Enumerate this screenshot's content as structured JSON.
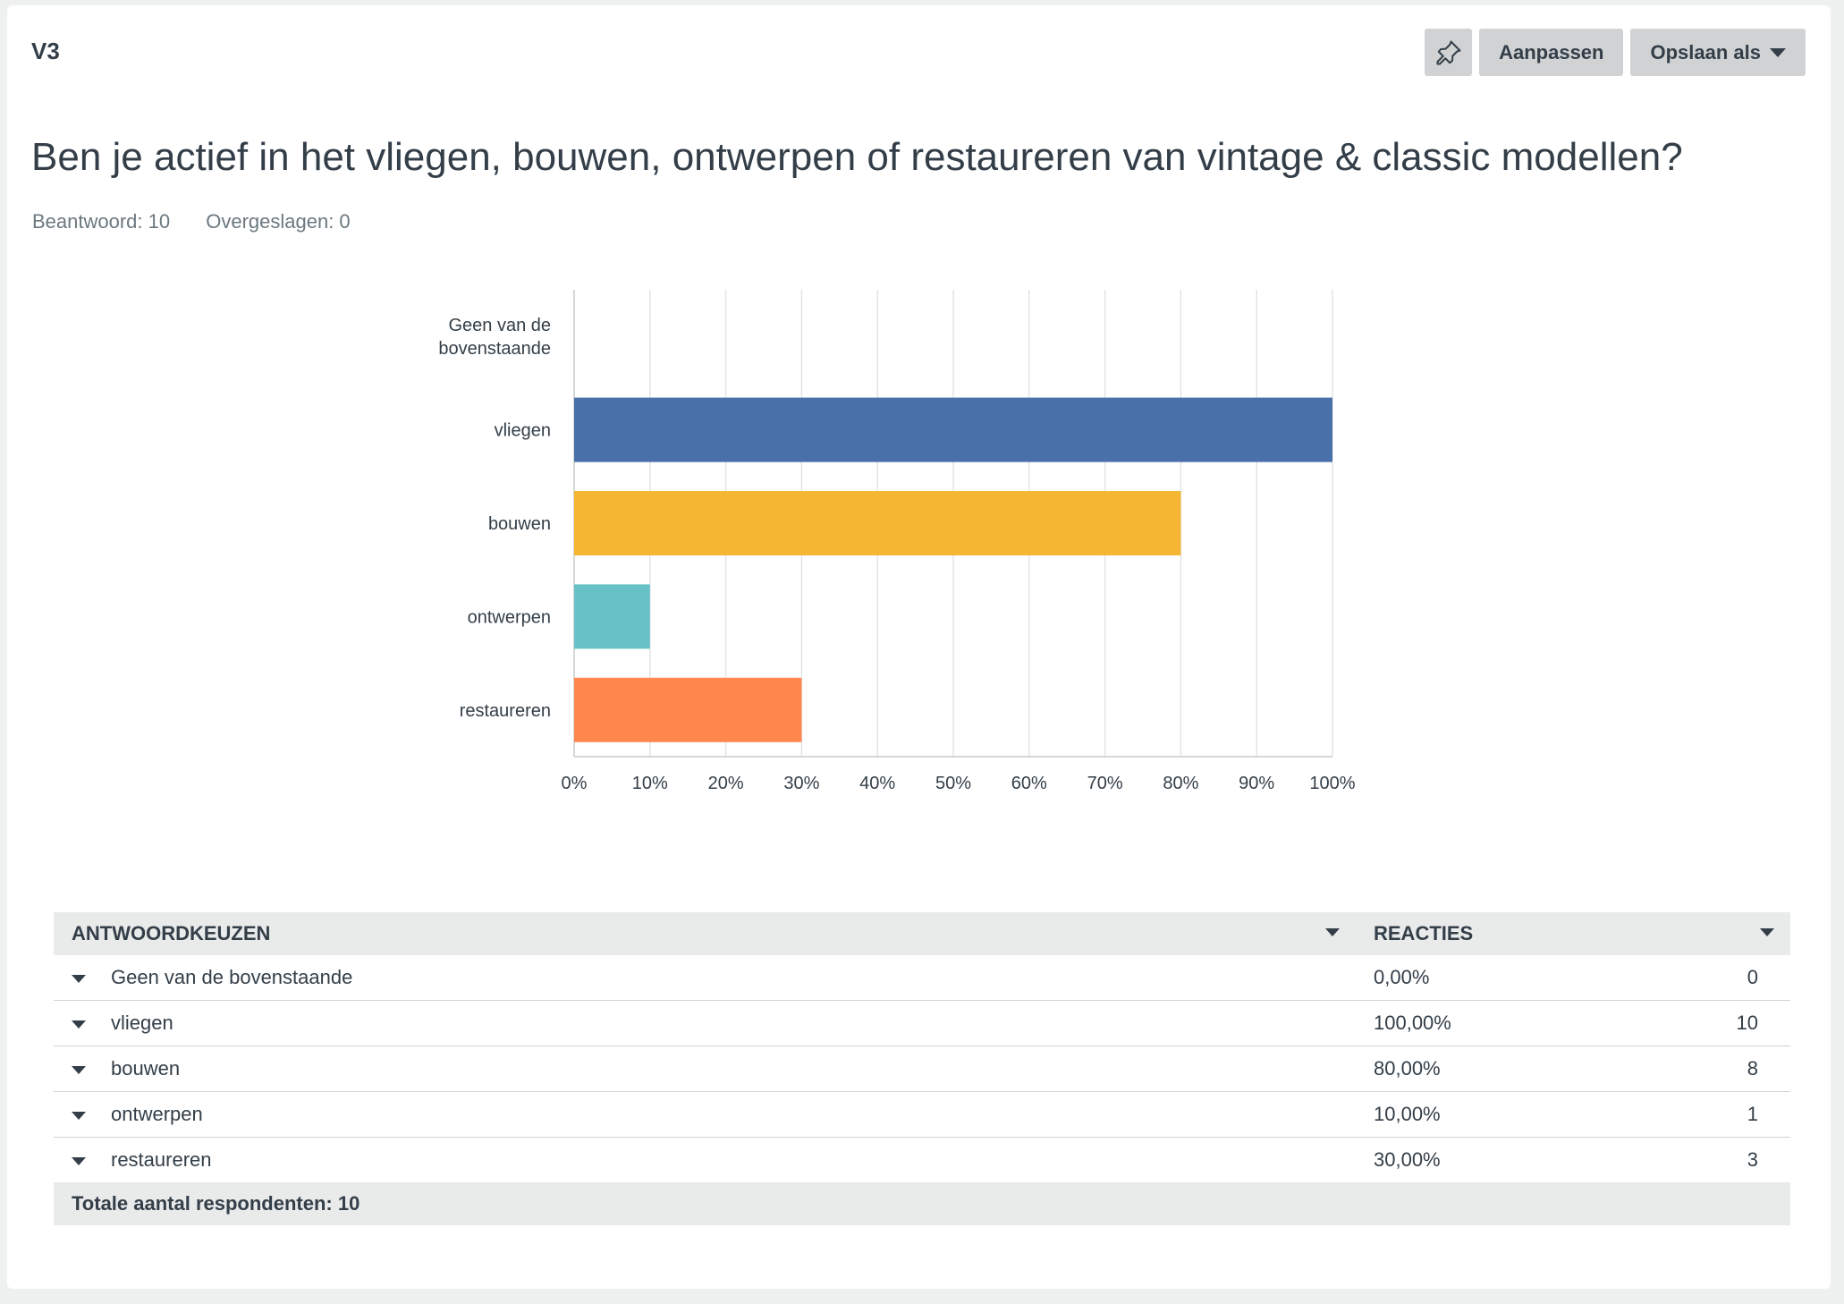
{
  "question": {
    "number": "V3",
    "title": "Ben je actief in het vliegen, bouwen, ontwerpen of restaureren van vintage & classic modellen?",
    "answered": "Beantwoord: 10",
    "skipped": "Overgeslagen: 0"
  },
  "toolbar": {
    "pin_icon": "pin-icon",
    "adjust_label": "Aanpassen",
    "save_label": "Opslaan als"
  },
  "colors": {
    "vliegen": "#4a70aa",
    "bouwen": "#f5b733",
    "ontwerpen": "#67c1c6",
    "restaureren": "#ff874d",
    "grid": "#e3e4e5"
  },
  "chart_data": {
    "type": "bar",
    "orientation": "horizontal",
    "categories": [
      "Geen van de bovenstaande",
      "vliegen",
      "bouwen",
      "ontwerpen",
      "restaureren"
    ],
    "values": [
      0,
      100,
      80,
      10,
      30
    ],
    "xlim": [
      0,
      100
    ],
    "x_ticks": [
      "0%",
      "10%",
      "20%",
      "30%",
      "40%",
      "50%",
      "60%",
      "70%",
      "80%",
      "90%",
      "100%"
    ],
    "grid": true,
    "legend": "none"
  },
  "table": {
    "headers": {
      "choices": "ANTWOORDKEUZEN",
      "responses": "REACTIES"
    },
    "rows": [
      {
        "label": "Geen van de bovenstaande",
        "percent": "0,00%",
        "count": "0"
      },
      {
        "label": "vliegen",
        "percent": "100,00%",
        "count": "10"
      },
      {
        "label": "bouwen",
        "percent": "80,00%",
        "count": "8"
      },
      {
        "label": "ontwerpen",
        "percent": "10,00%",
        "count": "1"
      },
      {
        "label": "restaureren",
        "percent": "30,00%",
        "count": "3"
      }
    ],
    "total": "Totale aantal respondenten: 10"
  }
}
